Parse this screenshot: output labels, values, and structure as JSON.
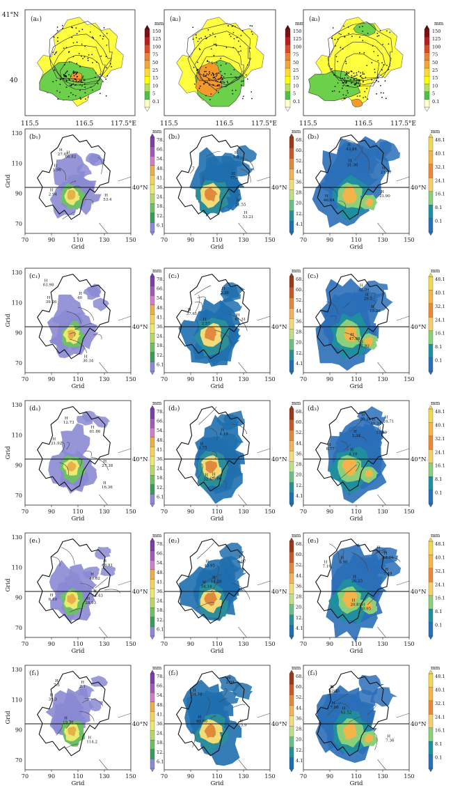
{
  "row_a": {
    "panel_labels": [
      "(a₁)",
      "(a₂)",
      "(a₃)"
    ],
    "lat_labels": [
      "41°N",
      "40"
    ],
    "lon_labels": [
      "115.5",
      "116.5",
      "117.5°E"
    ],
    "colorbar_unit": "mm",
    "colorbar_ticks": [
      "150",
      "125",
      "100",
      "75",
      "50",
      "25",
      "15",
      "10",
      "5",
      "0.1"
    ],
    "colorbar_colors": [
      "#7a1010",
      "#b51f1f",
      "#d94a2a",
      "#e9833a",
      "#f3a53a",
      "#ffd83a",
      "#ffff00",
      "#b6e05a",
      "#4fbf4a",
      "#ffffc8"
    ]
  },
  "grid_rows": [
    {
      "id": "b",
      "labels": [
        "(b₁)",
        "(b₂)",
        "(b₃)"
      ]
    },
    {
      "id": "c",
      "labels": [
        "(c₁)",
        "(c₂)",
        "(c₃)"
      ]
    },
    {
      "id": "d",
      "labels": [
        "(d₁)",
        "(d₂)",
        "(d₃)"
      ]
    },
    {
      "id": "e",
      "labels": [
        "(e₁)",
        "(e₂)",
        "(e₃)"
      ]
    },
    {
      "id": "f",
      "labels": [
        "(f₁)",
        "(f₂)",
        "(f₃)"
      ]
    }
  ],
  "grid_axes": {
    "x_label": "Grid",
    "y_label": "Grid",
    "x_ticks": [
      "70",
      "90",
      "110",
      "130",
      "150"
    ],
    "y_ticks": [
      "130",
      "110",
      "90",
      "70"
    ],
    "lat_marker": "40°N"
  },
  "colorbars": {
    "unit": "mm",
    "col1": {
      "ticks": [
        "78.1",
        "66.1",
        "54.1",
        "48.1",
        "41.1",
        "36.1",
        "24.1",
        "18.1",
        "12.1",
        "6.1"
      ],
      "colors": [
        "#7b3fa3",
        "#a05ab5",
        "#d07ec8",
        "#e7b04a",
        "#f5d35a",
        "#eaea70",
        "#b6d86a",
        "#6fbf66",
        "#3c9a5c",
        "#8a8ad4"
      ]
    },
    "col2": {
      "ticks": [
        "68.1",
        "60.1",
        "52.1",
        "44.1",
        "36.1",
        "28.1",
        "20.1",
        "12.1",
        "4.1"
      ],
      "colors": [
        "#9a3a1a",
        "#c55a2a",
        "#e08a3e",
        "#f2b45a",
        "#f2dc7a",
        "#bfe08a",
        "#6dbf8a",
        "#2a8f9a",
        "#1f6fae"
      ]
    },
    "col3": {
      "ticks": [
        "48.1",
        "40.1",
        "32.1",
        "24.1",
        "16.1",
        "8.1",
        "0.1"
      ],
      "colors": [
        "#f0d850",
        "#f3b54a",
        "#e98a3a",
        "#f5d06a",
        "#8ad07a",
        "#1f8fa0",
        "#2a6fb8"
      ]
    }
  },
  "annotations": {
    "b": [
      [
        "H",
        "2.94",
        "H",
        "66.82",
        "H",
        "1.96",
        "H",
        "27.05",
        "H",
        "53.4"
      ],
      [
        "H",
        "77.9",
        "H",
        "5.5",
        "H",
        "53.21",
        "H",
        "21.55"
      ],
      [
        "H",
        "21.37",
        "H",
        "43.84",
        "H",
        "21.90",
        "H",
        "46.44",
        "H",
        "31.36"
      ]
    ],
    "c": [
      [
        "H",
        "39.26",
        "H",
        "30.34",
        "H",
        "40",
        "H",
        "63.98"
      ],
      [
        "H",
        "61.31",
        "H",
        "37.61",
        "H",
        "2.38",
        "H",
        "2.57"
      ],
      [
        "H",
        "29.5",
        "H",
        "17.82",
        "H",
        "47.98",
        "H",
        "32.09",
        "H",
        "15.26"
      ]
    ],
    "d": [
      [
        "H",
        "12.73",
        "H",
        "27.38",
        "H",
        "16.36",
        "H",
        "21.92",
        "H",
        "61.86"
      ],
      [
        "H",
        "4.19",
        "H",
        "32.17",
        "H",
        "1.75",
        "H",
        "27.86"
      ],
      [
        "H",
        "1.34",
        "H",
        "13.49",
        "H",
        "4.19",
        "H",
        "24.71",
        "H",
        "39.34",
        "H",
        "20.34",
        "H",
        "6.77"
      ]
    ],
    "e": [
      [
        "H",
        "6.10",
        "H",
        "14.43",
        "H",
        "28.93",
        "H",
        "68.91",
        "H",
        "40.62"
      ],
      [
        "H",
        "6.07",
        "H",
        "14.20",
        "H",
        "54.14",
        "H",
        "43.95"
      ],
      [
        "H",
        "7.16",
        "H",
        "6.90",
        "H",
        "26.23",
        "H",
        "48.04",
        "H",
        "20.81",
        "H",
        "30.95",
        "H",
        "7.49",
        "H",
        "39.36"
      ]
    ],
    "f": [
      [
        "H",
        "7.3",
        "H",
        "39.3",
        "H",
        "2.1",
        "H",
        "19.76",
        "H",
        "114.2"
      ],
      [
        "H",
        "34.78",
        "H",
        "15.9",
        "H",
        "2.04",
        "H",
        "60.80"
      ],
      [
        "H",
        "7.36",
        "H",
        "1.14",
        "H",
        "63.52",
        "H",
        "22.25",
        "H",
        "7.06"
      ]
    ]
  }
}
